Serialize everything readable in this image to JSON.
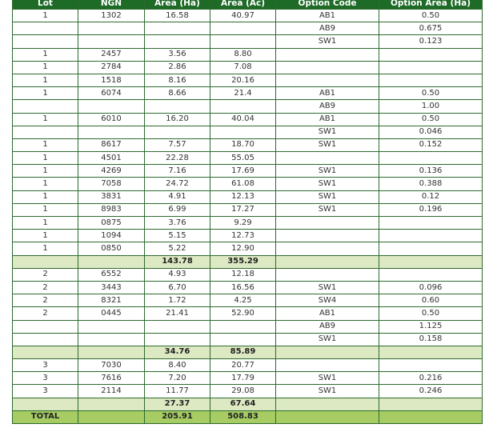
{
  "table": {
    "header": [
      "Lot",
      "NGN",
      "Area (Ha)",
      "Area (Ac)",
      "Option Code",
      "Option Area (Ha)"
    ],
    "rows": [
      [
        "1",
        "1302",
        "16.58",
        "40.97",
        "AB1",
        "0.50"
      ],
      [
        null,
        null,
        null,
        null,
        "AB9",
        "0.675"
      ],
      [
        null,
        null,
        null,
        null,
        "SW1",
        "0.123"
      ],
      [
        "1",
        "2457",
        "3.56",
        "8.80",
        null,
        null
      ],
      [
        "1",
        "2784",
        "2.86",
        "7.08",
        null,
        null
      ],
      [
        "1",
        "1518",
        "8.16",
        "20.16",
        null,
        null
      ],
      [
        "1",
        "6074",
        "8.66",
        "21.4",
        "AB1",
        "0.50"
      ],
      [
        null,
        null,
        null,
        null,
        "AB9",
        "1.00"
      ],
      [
        "1",
        "6010",
        "16.20",
        "40.04",
        "AB1",
        "0.50"
      ],
      [
        null,
        null,
        null,
        null,
        "SW1",
        "0.046"
      ],
      [
        "1",
        "8617",
        "7.57",
        "18.70",
        "SW1",
        "0.152"
      ],
      [
        "1",
        "4501",
        "22.28",
        "55.05",
        null,
        null
      ],
      [
        "1",
        "4269",
        "7.16",
        "17.69",
        "SW1",
        "0.136"
      ],
      [
        "1",
        "7058",
        "24.72",
        "61.08",
        "SW1",
        "0.388"
      ],
      [
        "1",
        "3831",
        "4.91",
        "12.13",
        "SW1",
        "0.12"
      ],
      [
        "1",
        "8983",
        "6.99",
        "17.27",
        "SW1",
        "0.196"
      ],
      [
        "1",
        "0875",
        "3.76",
        "9.29",
        null,
        null
      ],
      [
        "1",
        "1094",
        "5.15",
        "12.73",
        null,
        null
      ],
      [
        "1",
        "0850",
        "5.22",
        "12.90",
        null,
        null
      ],
      [
        null,
        null,
        "143.78",
        "355.29",
        null,
        null
      ],
      [
        "2",
        "6552",
        "4.93",
        "12.18",
        null,
        null
      ],
      [
        "2",
        "3443",
        "6.70",
        "16.56",
        "SW1",
        "0.096"
      ],
      [
        "2",
        "8321",
        "1.72",
        "4.25",
        "SW4",
        "0.60"
      ],
      [
        "2",
        "0445",
        "21.41",
        "52.90",
        "AB1",
        "0.50"
      ],
      [
        null,
        null,
        null,
        null,
        "AB9",
        "1.125"
      ],
      [
        null,
        null,
        null,
        null,
        "SW1",
        "0.158"
      ],
      [
        null,
        null,
        "34.76",
        "85.89",
        null,
        null
      ],
      [
        "3",
        "7030",
        "8.40",
        "20.77",
        null,
        null
      ],
      [
        "3",
        "7616",
        "7.20",
        "17.79",
        "SW1",
        "0.216"
      ],
      [
        "3",
        "2114",
        "11.77",
        "29.08",
        "SW1",
        "0.246"
      ],
      [
        null,
        null,
        "27.37",
        "67.64",
        null,
        null
      ],
      [
        "TOTAL",
        null,
        "205.91",
        "508.83",
        null,
        null
      ]
    ]
  }
}
